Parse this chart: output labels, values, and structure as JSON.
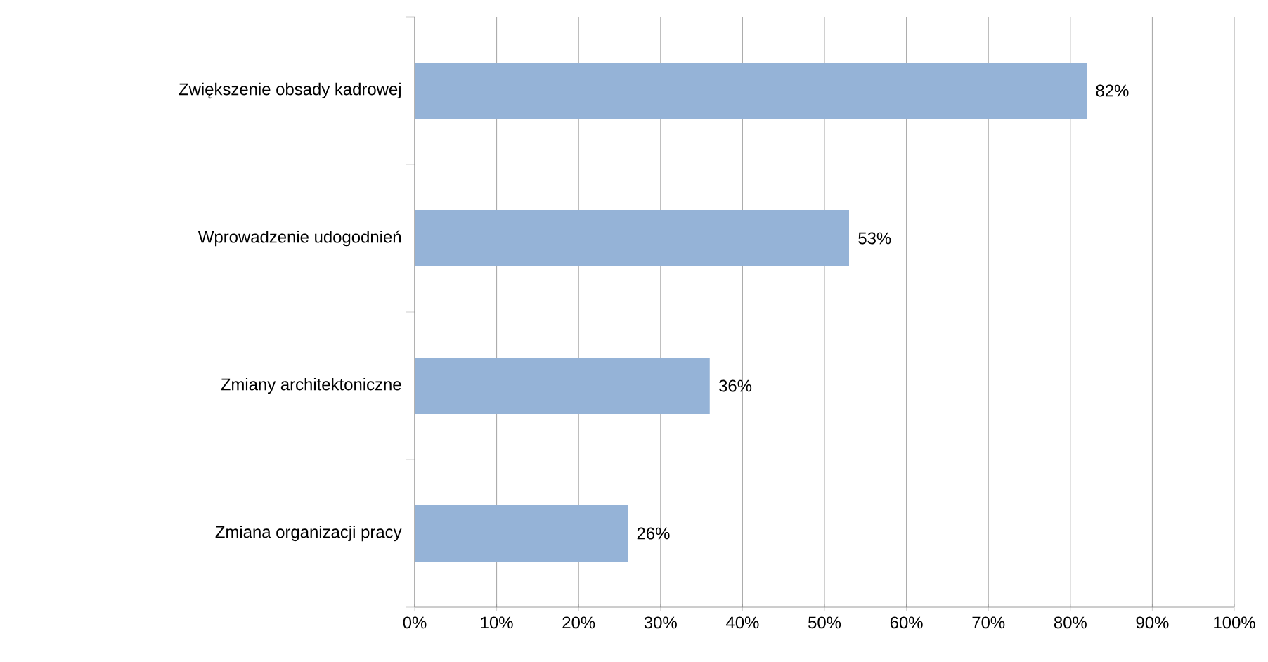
{
  "chart_data": {
    "type": "bar",
    "orientation": "horizontal",
    "categories": [
      "Zwiększenie obsady kadrowej",
      "Wprowadzenie udogodnień",
      "Zmiany architektoniczne",
      "Zmiana organizacji pracy"
    ],
    "values": [
      82,
      53,
      36,
      26
    ],
    "value_labels": [
      "82%",
      "53%",
      "36%",
      "26%"
    ],
    "color": "#95b3d7",
    "xlim": [
      0,
      100
    ],
    "xticks": [
      {
        "value": 0,
        "label": "0%"
      },
      {
        "value": 10,
        "label": "10%"
      },
      {
        "value": 20,
        "label": "20%"
      },
      {
        "value": 30,
        "label": "30%"
      },
      {
        "value": 40,
        "label": "40%"
      },
      {
        "value": 50,
        "label": "50%"
      },
      {
        "value": 60,
        "label": "60%"
      },
      {
        "value": 70,
        "label": "70%"
      },
      {
        "value": 80,
        "label": "80%"
      },
      {
        "value": 90,
        "label": "90%"
      },
      {
        "value": 100,
        "label": "100%"
      }
    ],
    "grid": "x"
  }
}
